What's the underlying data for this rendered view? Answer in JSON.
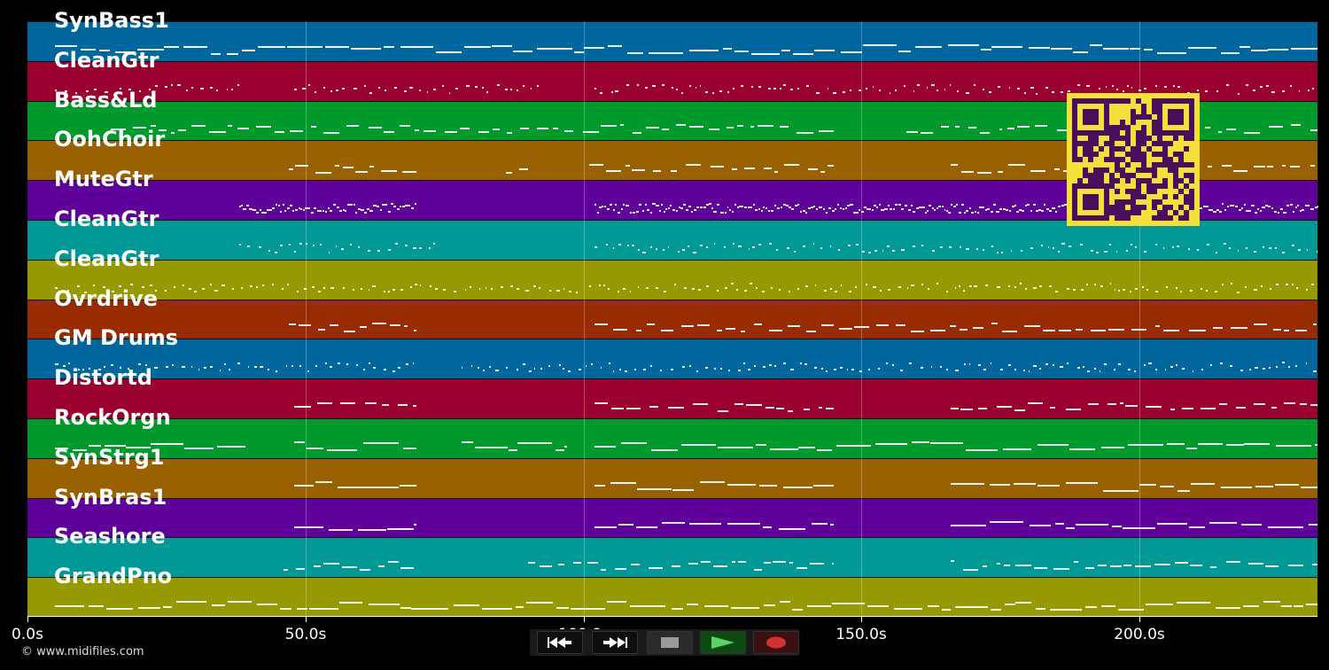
{
  "tracks": [
    {
      "label": "SynBass1",
      "color": "#00679e"
    },
    {
      "label": "CleanGtr",
      "color": "#99002e"
    },
    {
      "label": "Bass&Ld",
      "color": "#00992b"
    },
    {
      "label": "OohChoir",
      "color": "#996100"
    },
    {
      "label": "MuteGtr",
      "color": "#5e0099"
    },
    {
      "label": "CleanGtr",
      "color": "#009996"
    },
    {
      "label": "CleanGtr",
      "color": "#979900"
    },
    {
      "label": "Ovrdrive",
      "color": "#992b00"
    },
    {
      "label": "GM Drums",
      "color": "#00679e"
    },
    {
      "label": "Distortd",
      "color": "#99002e"
    },
    {
      "label": "RockOrgn",
      "color": "#00992b"
    },
    {
      "label": "SynStrg1",
      "color": "#996100"
    },
    {
      "label": "SynBras1",
      "color": "#5e0099"
    },
    {
      "label": "Seashore",
      "color": "#009996"
    },
    {
      "label": "GrandPno",
      "color": "#979900"
    }
  ],
  "axis": {
    "unit": "s",
    "max_seconds": 232,
    "ticks": [
      {
        "value": 0,
        "label": "0.0s"
      },
      {
        "value": 50,
        "label": "50.0s"
      },
      {
        "value": 100,
        "label": "100.0s"
      },
      {
        "value": 150,
        "label": "150.0s"
      },
      {
        "value": 200,
        "label": "200.0s"
      }
    ]
  },
  "copyright": "© www.midifiles.com",
  "transport": {
    "buttons": [
      {
        "name": "rewind-button",
        "icon": "rewind-icon"
      },
      {
        "name": "fast-forward-button",
        "icon": "fast-forward-icon"
      },
      {
        "name": "stop-button",
        "icon": "stop-icon"
      },
      {
        "name": "play-button",
        "icon": "play-icon"
      },
      {
        "name": "record-button",
        "icon": "record-icon"
      }
    ]
  },
  "qr_code": {
    "icon": "qr-code-icon",
    "fg": "#4a0f5c",
    "bg": "#f5e03b"
  }
}
